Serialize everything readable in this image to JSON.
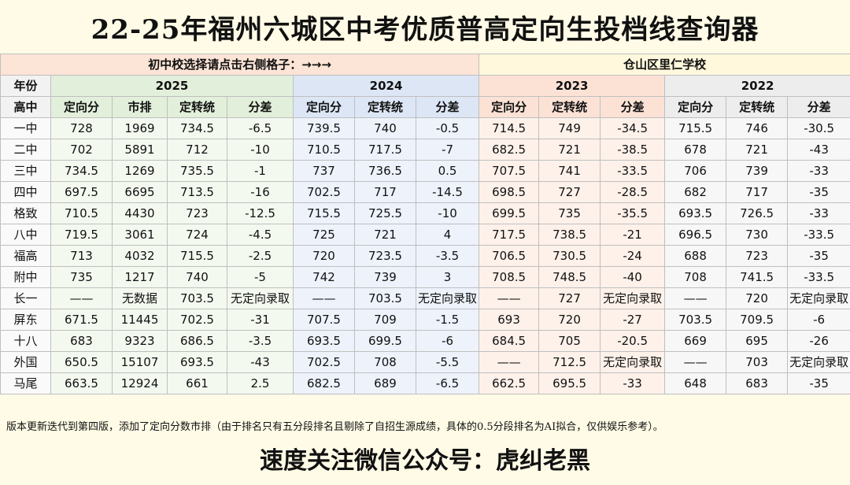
{
  "title": "22-25年福州六城区中考优质普高定向生投档线查询器",
  "banner": {
    "prompt": "初中校选择请点击右侧格子：→→→",
    "school": "仓山区里仁学校"
  },
  "header": {
    "year_label": "年份",
    "school_label": "高中",
    "years": [
      "2025",
      "2024",
      "2023",
      "2022"
    ],
    "cols_2025": [
      "定向分",
      "市排",
      "定转统",
      "分差"
    ],
    "cols_2024": [
      "定向分",
      "定转统",
      "分差"
    ],
    "cols_2023": [
      "定向分",
      "定转统",
      "分差"
    ],
    "cols_2022": [
      "定向分",
      "定转统",
      "分差"
    ]
  },
  "rows": [
    {
      "school": "一中",
      "y2025": [
        "728",
        "1969",
        "734.5",
        "-6.5"
      ],
      "y2024": [
        "739.5",
        "740",
        "-0.5"
      ],
      "y2023": [
        "714.5",
        "749",
        "-34.5"
      ],
      "y2022": [
        "715.5",
        "746",
        "-30.5"
      ]
    },
    {
      "school": "二中",
      "y2025": [
        "702",
        "5891",
        "712",
        "-10"
      ],
      "y2024": [
        "710.5",
        "717.5",
        "-7"
      ],
      "y2023": [
        "682.5",
        "721",
        "-38.5"
      ],
      "y2022": [
        "678",
        "721",
        "-43"
      ]
    },
    {
      "school": "三中",
      "y2025": [
        "734.5",
        "1269",
        "735.5",
        "-1"
      ],
      "y2024": [
        "737",
        "736.5",
        "0.5"
      ],
      "y2023": [
        "707.5",
        "741",
        "-33.5"
      ],
      "y2022": [
        "706",
        "739",
        "-33"
      ]
    },
    {
      "school": "四中",
      "y2025": [
        "697.5",
        "6695",
        "713.5",
        "-16"
      ],
      "y2024": [
        "702.5",
        "717",
        "-14.5"
      ],
      "y2023": [
        "698.5",
        "727",
        "-28.5"
      ],
      "y2022": [
        "682",
        "717",
        "-35"
      ]
    },
    {
      "school": "格致",
      "y2025": [
        "710.5",
        "4430",
        "723",
        "-12.5"
      ],
      "y2024": [
        "715.5",
        "725.5",
        "-10"
      ],
      "y2023": [
        "699.5",
        "735",
        "-35.5"
      ],
      "y2022": [
        "693.5",
        "726.5",
        "-33"
      ]
    },
    {
      "school": "八中",
      "y2025": [
        "719.5",
        "3061",
        "724",
        "-4.5"
      ],
      "y2024": [
        "725",
        "721",
        "4"
      ],
      "y2023": [
        "717.5",
        "738.5",
        "-21"
      ],
      "y2022": [
        "696.5",
        "730",
        "-33.5"
      ]
    },
    {
      "school": "福高",
      "y2025": [
        "713",
        "4032",
        "715.5",
        "-2.5"
      ],
      "y2024": [
        "720",
        "723.5",
        "-3.5"
      ],
      "y2023": [
        "706.5",
        "730.5",
        "-24"
      ],
      "y2022": [
        "688",
        "723",
        "-35"
      ]
    },
    {
      "school": "附中",
      "y2025": [
        "735",
        "1217",
        "740",
        "-5"
      ],
      "y2024": [
        "742",
        "739",
        "3"
      ],
      "y2023": [
        "708.5",
        "748.5",
        "-40"
      ],
      "y2022": [
        "708",
        "741.5",
        "-33.5"
      ]
    },
    {
      "school": "长一",
      "y2025": [
        "——",
        "无数据",
        "703.5",
        "无定向录取"
      ],
      "y2024": [
        "——",
        "703.5",
        "无定向录取"
      ],
      "y2023": [
        "——",
        "727",
        "无定向录取"
      ],
      "y2022": [
        "——",
        "720",
        "无定向录取"
      ]
    },
    {
      "school": "屏东",
      "y2025": [
        "671.5",
        "11445",
        "702.5",
        "-31"
      ],
      "y2024": [
        "707.5",
        "709",
        "-1.5"
      ],
      "y2023": [
        "693",
        "720",
        "-27"
      ],
      "y2022": [
        "703.5",
        "709.5",
        "-6"
      ]
    },
    {
      "school": "十八",
      "y2025": [
        "683",
        "9323",
        "686.5",
        "-3.5"
      ],
      "y2024": [
        "693.5",
        "699.5",
        "-6"
      ],
      "y2023": [
        "684.5",
        "705",
        "-20.5"
      ],
      "y2022": [
        "669",
        "695",
        "-26"
      ]
    },
    {
      "school": "外国",
      "y2025": [
        "650.5",
        "15107",
        "693.5",
        "-43"
      ],
      "y2024": [
        "702.5",
        "708",
        "-5.5"
      ],
      "y2023": [
        "——",
        "712.5",
        "无定向录取"
      ],
      "y2022": [
        "——",
        "703",
        "无定向录取"
      ]
    },
    {
      "school": "马尾",
      "y2025": [
        "663.5",
        "12924",
        "661",
        "2.5"
      ],
      "y2024": [
        "682.5",
        "689",
        "-6.5"
      ],
      "y2023": [
        "662.5",
        "695.5",
        "-33"
      ],
      "y2022": [
        "648",
        "683",
        "-35"
      ]
    }
  ],
  "note": "版本更新迭代到第四版，添加了定向分数市排（由于排名只有五分段排名且剔除了自招生源成绩，具体的0.5分段排名为AI拟合，仅供娱乐参考）。",
  "footer": "速度关注微信公众号：虎纠老黑",
  "colors": {
    "y2025": "#e2efda",
    "y2024": "#dce6f5",
    "y2023": "#fbe2d5",
    "y2022": "#ededed",
    "page_bg": "#fffbe6"
  }
}
